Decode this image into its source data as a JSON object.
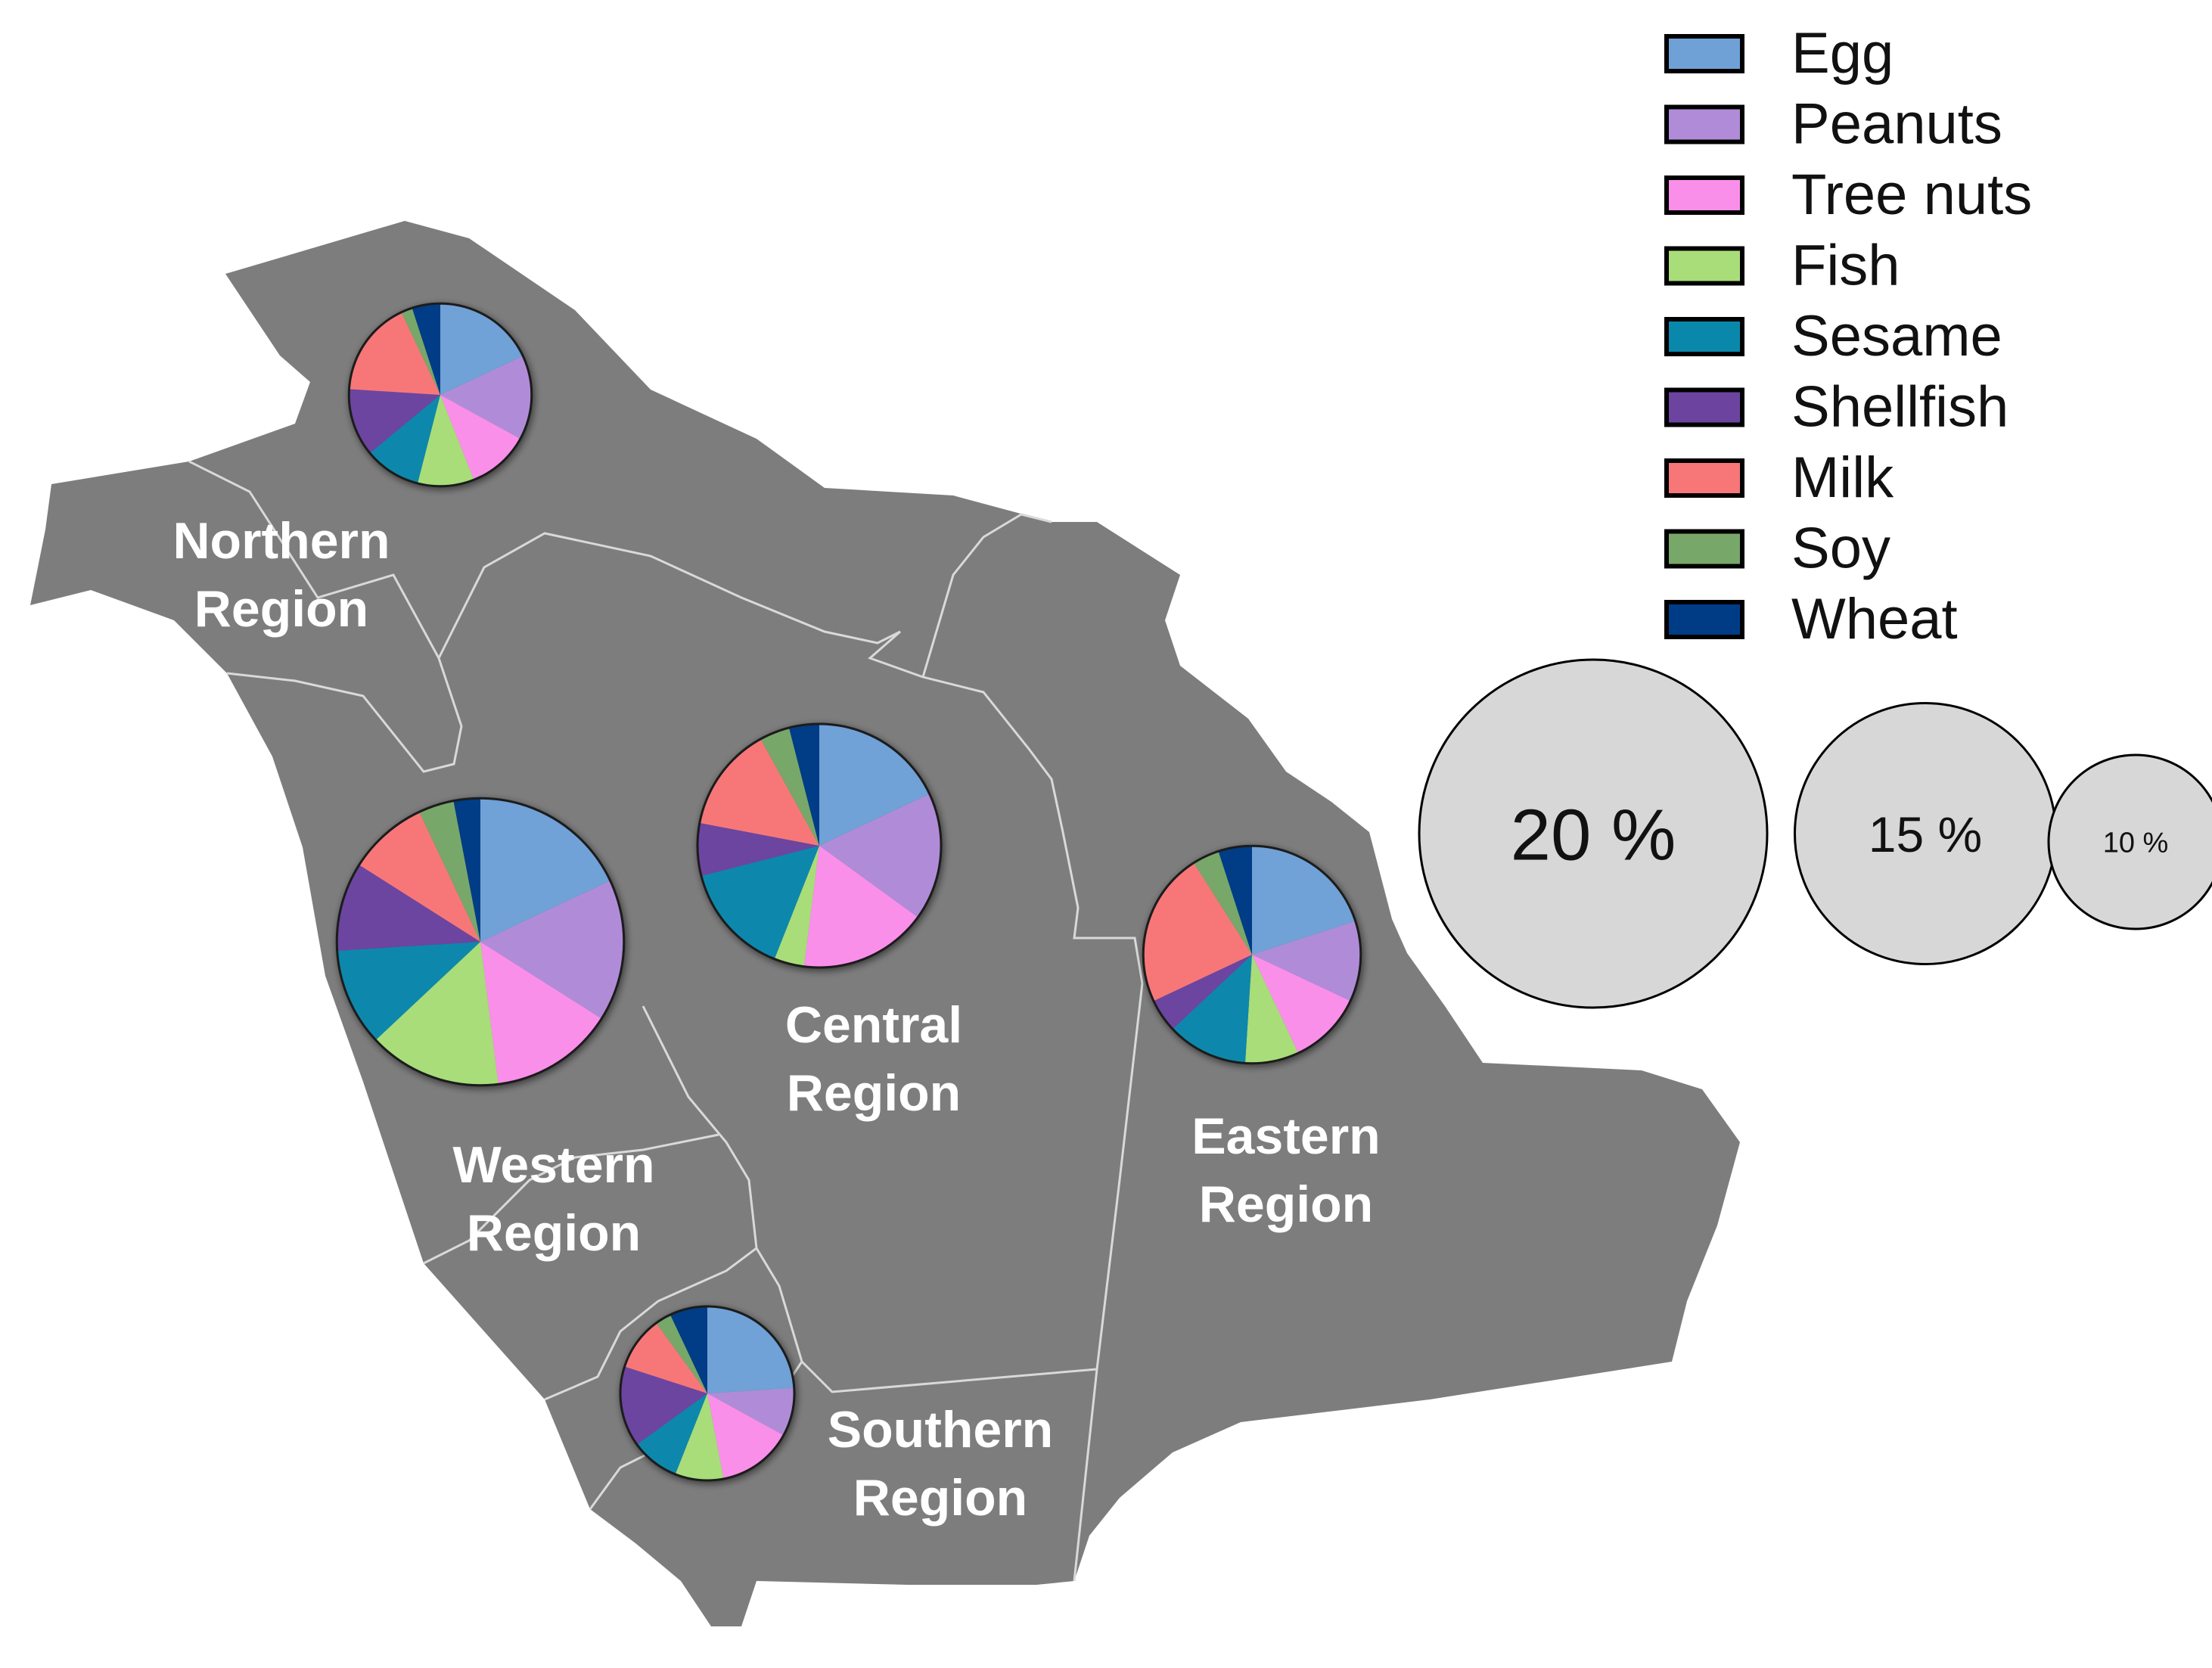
{
  "legend": [
    {
      "label": "Egg",
      "color": "#6FA1D7"
    },
    {
      "label": "Peanuts",
      "color": "#B08CD8"
    },
    {
      "label": "Tree nuts",
      "color": "#FA8FEA"
    },
    {
      "label": "Fish",
      "color": "#A8DD7A"
    },
    {
      "label": "Sesame",
      "color": "#0A88AC"
    },
    {
      "label": "Shellfish",
      "color": "#6C44A0"
    },
    {
      "label": "Milk",
      "color": "#F77779"
    },
    {
      "label": "Soy",
      "color": "#78A76A"
    },
    {
      "label": "Wheat",
      "color": "#003C86"
    }
  ],
  "size_key": [
    {
      "label": "20 %",
      "value": 20
    },
    {
      "label": "15 %",
      "value": 15
    },
    {
      "label": "10 %",
      "value": 10
    }
  ],
  "regions": [
    {
      "line1": "Northern",
      "line2": "Region",
      "total_percent": 10.5,
      "shares": {
        "Egg": 18,
        "Peanuts": 15,
        "Tree nuts": 11,
        "Fish": 10,
        "Sesame": 10,
        "Shellfish": 12,
        "Milk": 17,
        "Soy": 2,
        "Wheat": 5
      }
    },
    {
      "line1": "Central",
      "line2": "Region",
      "total_percent": 14,
      "shares": {
        "Egg": 18,
        "Peanuts": 17,
        "Tree nuts": 17,
        "Fish": 4,
        "Sesame": 15,
        "Shellfish": 7,
        "Milk": 14,
        "Soy": 4,
        "Wheat": 4
      }
    },
    {
      "line1": "Western",
      "line2": "Region",
      "total_percent": 16.5,
      "shares": {
        "Egg": 18,
        "Peanuts": 16,
        "Tree nuts": 14,
        "Fish": 15,
        "Sesame": 11,
        "Shellfish": 10,
        "Milk": 9,
        "Soy": 4,
        "Wheat": 3
      }
    },
    {
      "line1": "Eastern",
      "line2": "Region",
      "total_percent": 12.5,
      "shares": {
        "Egg": 20,
        "Peanuts": 12,
        "Tree nuts": 11,
        "Fish": 8,
        "Sesame": 12,
        "Shellfish": 5,
        "Milk": 23,
        "Soy": 4,
        "Wheat": 5
      }
    },
    {
      "line1": "Southern",
      "line2": "Region",
      "total_percent": 10,
      "shares": {
        "Egg": 24,
        "Peanuts": 9,
        "Tree nuts": 14,
        "Fish": 9,
        "Sesame": 9,
        "Shellfish": 15,
        "Milk": 10,
        "Soy": 3,
        "Wheat": 7
      }
    }
  ],
  "colors": {
    "map_fill": "#7D7D7D",
    "border_line": "#D9D9D9",
    "size_key_fill": "#D7D7D7",
    "region_text": "#FFFFFF"
  }
}
